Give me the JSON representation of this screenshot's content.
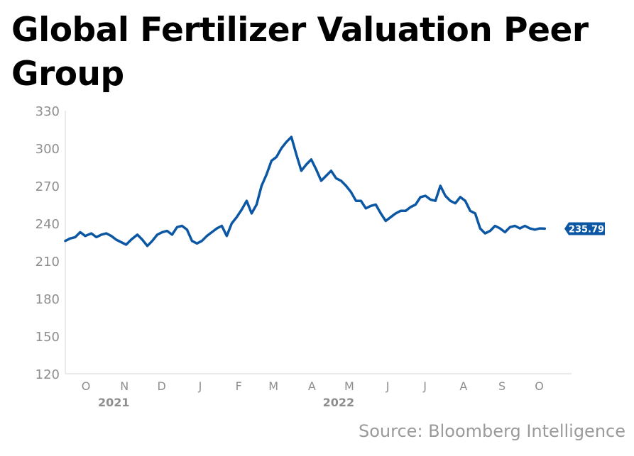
{
  "chart_data": {
    "type": "line",
    "title": "Global Fertilizer Valuation Peer Group",
    "source": "Source: Bloomberg Intelligence",
    "color": "#0b57a4",
    "ylim": [
      120,
      330
    ],
    "y_ticks": [
      "330",
      "300",
      "270",
      "240",
      "210",
      "180",
      "150",
      "120"
    ],
    "grid": false,
    "months": [
      {
        "label": "O",
        "date": "2021-10-01"
      },
      {
        "label": "N",
        "date": "2021-11-01"
      },
      {
        "label": "D",
        "date": "2021-12-01"
      },
      {
        "label": "J",
        "date": "2022-01-01"
      },
      {
        "label": "F",
        "date": "2022-02-01"
      },
      {
        "label": "M",
        "date": "2022-03-01"
      },
      {
        "label": "A",
        "date": "2022-04-01"
      },
      {
        "label": "M",
        "date": "2022-05-01"
      },
      {
        "label": "J",
        "date": "2022-06-01"
      },
      {
        "label": "J",
        "date": "2022-07-01"
      },
      {
        "label": "A",
        "date": "2022-08-01"
      },
      {
        "label": "S",
        "date": "2022-09-01"
      },
      {
        "label": "O",
        "date": "2022-10-01"
      }
    ],
    "years": [
      {
        "label": "2021",
        "date": "2021-11-01"
      },
      {
        "label": "2022",
        "date": "2022-05-01"
      }
    ],
    "x_start": "2021-09-23",
    "x_end": "2022-10-27",
    "last_value_label": "235.79",
    "series": [
      {
        "x": [
          "2021-09-23",
          "2021-09-27",
          "2021-10-01",
          "2021-10-05",
          "2021-10-09",
          "2021-10-14",
          "2021-10-18",
          "2021-10-22",
          "2021-10-26",
          "2021-10-30",
          "2021-11-03",
          "2021-11-07",
          "2021-11-11",
          "2021-11-15",
          "2021-11-20",
          "2021-11-24",
          "2021-11-28",
          "2021-12-02",
          "2021-12-06",
          "2021-12-10",
          "2021-12-14",
          "2021-12-18",
          "2021-12-22",
          "2021-12-26",
          "2021-12-30",
          "2022-01-03",
          "2022-01-07",
          "2022-01-11",
          "2022-01-15",
          "2022-01-19",
          "2022-01-23",
          "2022-01-27",
          "2022-01-31",
          "2022-02-04",
          "2022-02-08",
          "2022-02-12",
          "2022-02-16",
          "2022-02-20",
          "2022-02-24",
          "2022-02-28",
          "2022-03-04",
          "2022-03-08",
          "2022-03-12",
          "2022-03-16",
          "2022-03-20",
          "2022-03-24",
          "2022-03-28",
          "2022-04-01",
          "2022-04-05",
          "2022-04-09",
          "2022-04-13",
          "2022-04-17",
          "2022-04-21",
          "2022-04-25",
          "2022-04-29",
          "2022-05-03",
          "2022-05-07",
          "2022-05-11",
          "2022-05-15",
          "2022-05-19",
          "2022-05-23",
          "2022-05-27",
          "2022-05-31",
          "2022-06-04",
          "2022-06-08",
          "2022-06-12",
          "2022-06-16",
          "2022-06-20",
          "2022-06-24",
          "2022-06-28",
          "2022-07-02",
          "2022-07-06",
          "2022-07-10",
          "2022-07-14",
          "2022-07-18",
          "2022-07-22",
          "2022-07-26",
          "2022-07-30",
          "2022-08-03",
          "2022-08-07",
          "2022-08-11",
          "2022-08-15",
          "2022-08-19",
          "2022-08-23",
          "2022-08-27",
          "2022-08-31",
          "2022-09-04",
          "2022-09-08",
          "2022-09-12",
          "2022-09-16",
          "2022-09-20",
          "2022-09-24",
          "2022-09-28",
          "2022-10-02",
          "2022-10-06",
          "2022-10-10",
          "2022-10-14"
        ],
        "values": [
          226,
          228,
          229,
          233,
          230,
          232,
          229,
          231,
          232,
          230,
          227,
          225,
          223,
          227,
          231,
          227,
          222,
          226,
          231,
          233,
          234,
          231,
          237,
          238,
          235,
          226,
          224,
          226,
          230,
          233,
          236,
          238,
          230,
          240,
          245,
          251,
          258,
          248,
          255,
          270,
          279,
          290,
          293,
          300,
          305,
          309,
          295,
          282,
          287,
          291,
          283,
          274,
          278,
          282,
          276,
          274,
          270,
          265,
          258,
          258,
          252,
          254,
          255,
          248,
          242,
          245,
          248,
          250,
          250,
          253,
          255,
          261,
          262,
          259,
          258,
          270,
          262,
          258,
          256,
          261,
          258,
          250,
          248,
          236,
          232,
          234,
          238,
          236,
          233,
          237,
          238,
          236,
          238,
          236,
          235,
          236,
          235.79
        ]
      }
    ]
  }
}
